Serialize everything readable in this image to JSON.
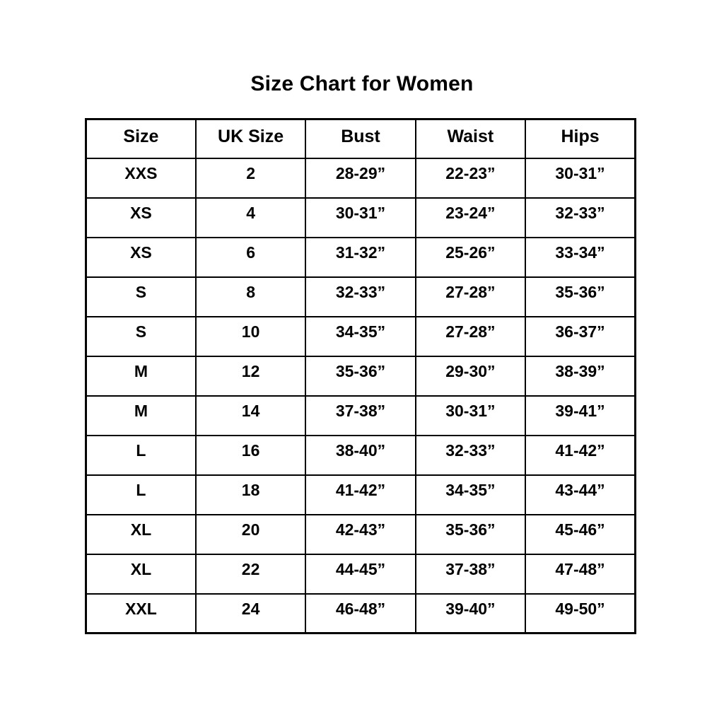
{
  "page": {
    "title": "Size Chart for Women"
  },
  "table": {
    "columns": [
      "Size",
      "UK Size",
      "Bust",
      "Waist",
      "Hips"
    ],
    "rows": [
      {
        "size": "XXS",
        "uk_size": "2",
        "bust": "28-29”",
        "waist": "22-23”",
        "hips": "30-31”"
      },
      {
        "size": "XS",
        "uk_size": "4",
        "bust": "30-31”",
        "waist": "23-24”",
        "hips": "32-33”"
      },
      {
        "size": "XS",
        "uk_size": "6",
        "bust": "31-32”",
        "waist": "25-26”",
        "hips": "33-34”"
      },
      {
        "size": "S",
        "uk_size": "8",
        "bust": "32-33”",
        "waist": "27-28”",
        "hips": "35-36”"
      },
      {
        "size": "S",
        "uk_size": "10",
        "bust": "34-35”",
        "waist": "27-28”",
        "hips": "36-37”"
      },
      {
        "size": "M",
        "uk_size": "12",
        "bust": "35-36”",
        "waist": "29-30”",
        "hips": "38-39”"
      },
      {
        "size": "M",
        "uk_size": "14",
        "bust": "37-38”",
        "waist": "30-31”",
        "hips": "39-41”"
      },
      {
        "size": "L",
        "uk_size": "16",
        "bust": "38-40”",
        "waist": "32-33”",
        "hips": "41-42”"
      },
      {
        "size": "L",
        "uk_size": "18",
        "bust": "41-42”",
        "waist": "34-35”",
        "hips": "43-44”"
      },
      {
        "size": "XL",
        "uk_size": "20",
        "bust": "42-43”",
        "waist": "35-36”",
        "hips": "45-46”"
      },
      {
        "size": "XL",
        "uk_size": "22",
        "bust": "44-45”",
        "waist": "37-38”",
        "hips": "47-48”"
      },
      {
        "size": "XXL",
        "uk_size": "24",
        "bust": "46-48”",
        "waist": "39-40”",
        "hips": "49-50”"
      }
    ],
    "colors": {
      "border": "#000000",
      "text": "#000000",
      "background": "#ffffff"
    }
  }
}
